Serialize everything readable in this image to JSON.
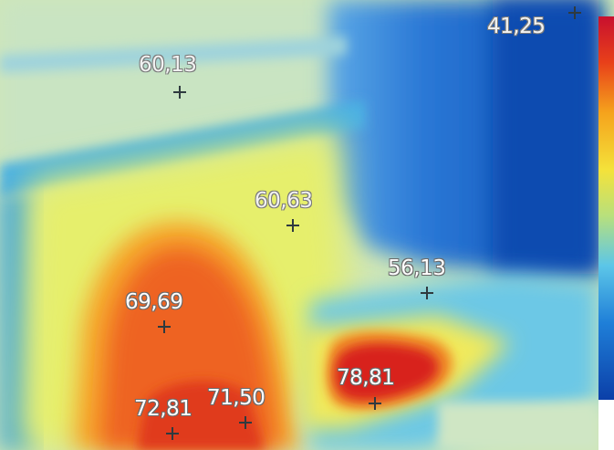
{
  "measurements": [
    {
      "id": "sp-a",
      "label": "41,25"
    },
    {
      "id": "sp-b",
      "label": "60,13"
    },
    {
      "id": "sp-c",
      "label": "60,63"
    },
    {
      "id": "sp-d",
      "label": "56,13"
    },
    {
      "id": "sp-e",
      "label": "69,69"
    },
    {
      "id": "sp-f",
      "label": "78,81"
    },
    {
      "id": "sp-g",
      "label": "72,81"
    },
    {
      "id": "sp-h",
      "label": "71,50"
    }
  ]
}
